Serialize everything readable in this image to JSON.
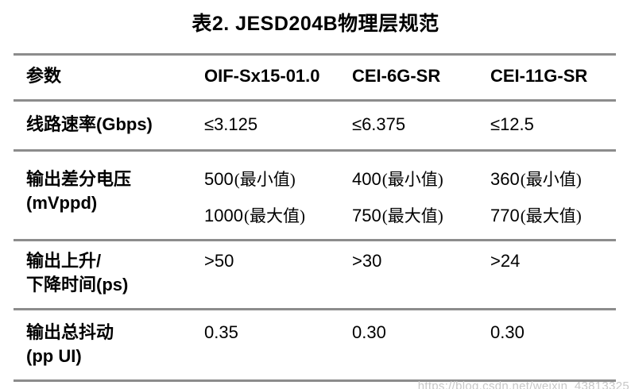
{
  "page": {
    "title": "表2. JESD204B物理层规范",
    "watermark": "https://blog.csdn.net/weixin_43813325"
  },
  "colors": {
    "text": "#000000",
    "rule": "#8c8c8c",
    "watermark": "#c8c8c8"
  },
  "table": {
    "columns": [
      "参数",
      "OIF-Sx15-01.0",
      "CEI-6G-SR",
      "CEI-11G-SR"
    ],
    "rows": [
      {
        "param_lines": [
          "线路速率(Gbps)"
        ],
        "cells": [
          [
            {
              "num": "≤3.125",
              "qual": ""
            }
          ],
          [
            {
              "num": "≤6.375",
              "qual": ""
            }
          ],
          [
            {
              "num": "≤12.5",
              "qual": ""
            }
          ]
        ]
      },
      {
        "param_lines": [
          "输出差分电压",
          "(mVppd)"
        ],
        "cells": [
          [
            {
              "num": "500",
              "qual": "(最小值)"
            },
            {
              "num": "1000",
              "qual": "(最大值)"
            }
          ],
          [
            {
              "num": "400",
              "qual": "(最小值)"
            },
            {
              "num": "750",
              "qual": "(最大值)"
            }
          ],
          [
            {
              "num": "360",
              "qual": "(最小值)"
            },
            {
              "num": "770",
              "qual": "(最大值)"
            }
          ]
        ]
      },
      {
        "param_lines": [
          "输出上升/",
          "下降时间(ps)"
        ],
        "cells": [
          [
            {
              "num": ">50",
              "qual": ""
            }
          ],
          [
            {
              "num": ">30",
              "qual": ""
            }
          ],
          [
            {
              "num": ">24",
              "qual": ""
            }
          ]
        ]
      },
      {
        "param_lines": [
          "输出总抖动",
          "(pp UI)"
        ],
        "cells": [
          [
            {
              "num": "0.35",
              "qual": ""
            }
          ],
          [
            {
              "num": "0.30",
              "qual": ""
            }
          ],
          [
            {
              "num": "0.30",
              "qual": ""
            }
          ]
        ]
      }
    ]
  }
}
